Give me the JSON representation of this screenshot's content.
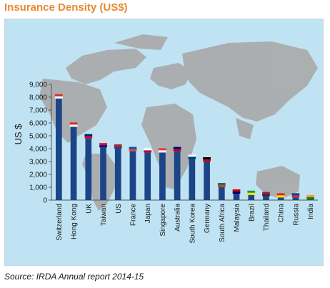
{
  "header": {
    "title": "Insurance Density (US$)"
  },
  "footer": {
    "source": "Source: IRDA Annual report 2014-15"
  },
  "colors": {
    "bar": "#1b4586",
    "panel": "#bfe3f2",
    "map": "#a9a9a9",
    "title": "#e8892f"
  },
  "chart_data": {
    "type": "bar",
    "title": "Insurance Density (US$)",
    "xlabel": "",
    "ylabel": "US $",
    "ylim": [
      0,
      9000
    ],
    "yticks": [
      "0",
      "1,000",
      "2,000",
      "3,000",
      "4,000",
      "5,000",
      "6,000",
      "7,000",
      "8,000",
      "9,000"
    ],
    "grid": false,
    "categories": [
      "Switzerland",
      "Hong Kong",
      "UK",
      "Taiwan",
      "US",
      "France",
      "Japan",
      "Singapore",
      "Australia",
      "South Korea",
      "Germany",
      "South Africa",
      "Malaysia",
      "Brazil",
      "Thailand",
      "China",
      "Russia",
      "India"
    ],
    "values": [
      7900,
      5700,
      4800,
      4100,
      4000,
      3800,
      3700,
      3700,
      3800,
      3200,
      3000,
      1000,
      500,
      400,
      300,
      200,
      200,
      60
    ],
    "flag_icons": [
      "switzerland-flag-icon",
      "hong-kong-flag-icon",
      "uk-flag-icon",
      "taiwan-flag-icon",
      "us-flag-icon",
      "france-flag-icon",
      "japan-flag-icon",
      "singapore-flag-icon",
      "australia-flag-icon",
      "south-korea-flag-icon",
      "germany-flag-icon",
      "south-africa-flag-icon",
      "malaysia-flag-icon",
      "brazil-flag-icon",
      "thailand-flag-icon",
      "china-flag-icon",
      "russia-flag-icon",
      "india-flag-icon"
    ]
  }
}
